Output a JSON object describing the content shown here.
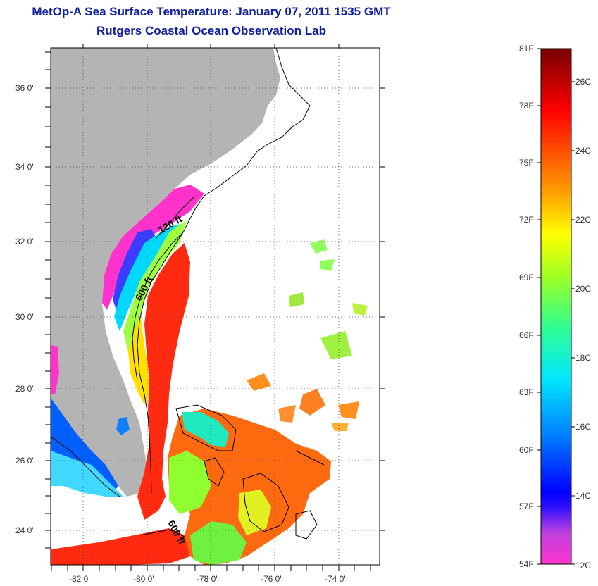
{
  "header": {
    "title": "MetOp-A Sea Surface Temperature:  January 07, 2011 1535 GMT",
    "subtitle": "Rutgers Coastal Ocean Observation Lab"
  },
  "map": {
    "lat_range": [
      23,
      37.1
    ],
    "lon_range": [
      -83,
      -72.9
    ],
    "lat_labels": [
      "36 0'",
      "34 0'",
      "32 0'",
      "30 0'",
      "28 0'",
      "26 0'",
      "24 0'"
    ],
    "lon_labels": [
      "-82 0'",
      "-80 0'",
      "-78 0'",
      "-76 0'",
      "-74 0'"
    ],
    "contour_labels": [
      "120 ft",
      "600 ft",
      "600 ft"
    ],
    "land_color": "#b4b4b4",
    "grid": "dotted"
  },
  "colorbar": {
    "fahrenheit_labels": [
      "81F",
      "78F",
      "75F",
      "72F",
      "69F",
      "66F",
      "63F",
      "60F",
      "57F",
      "54F"
    ],
    "celsius_labels": [
      "26C",
      "24C",
      "22C",
      "20C",
      "18C",
      "16C",
      "14C",
      "12C"
    ],
    "range_f": [
      54,
      81
    ],
    "range_c": [
      12,
      27.2
    ],
    "colors": [
      "#ff2ed0",
      "#8a2be2",
      "#0010ff",
      "#0080ff",
      "#00e8ff",
      "#30ff90",
      "#a0ff20",
      "#ffff00",
      "#ffa000",
      "#ff4000",
      "#ff0000",
      "#7a0000"
    ]
  }
}
